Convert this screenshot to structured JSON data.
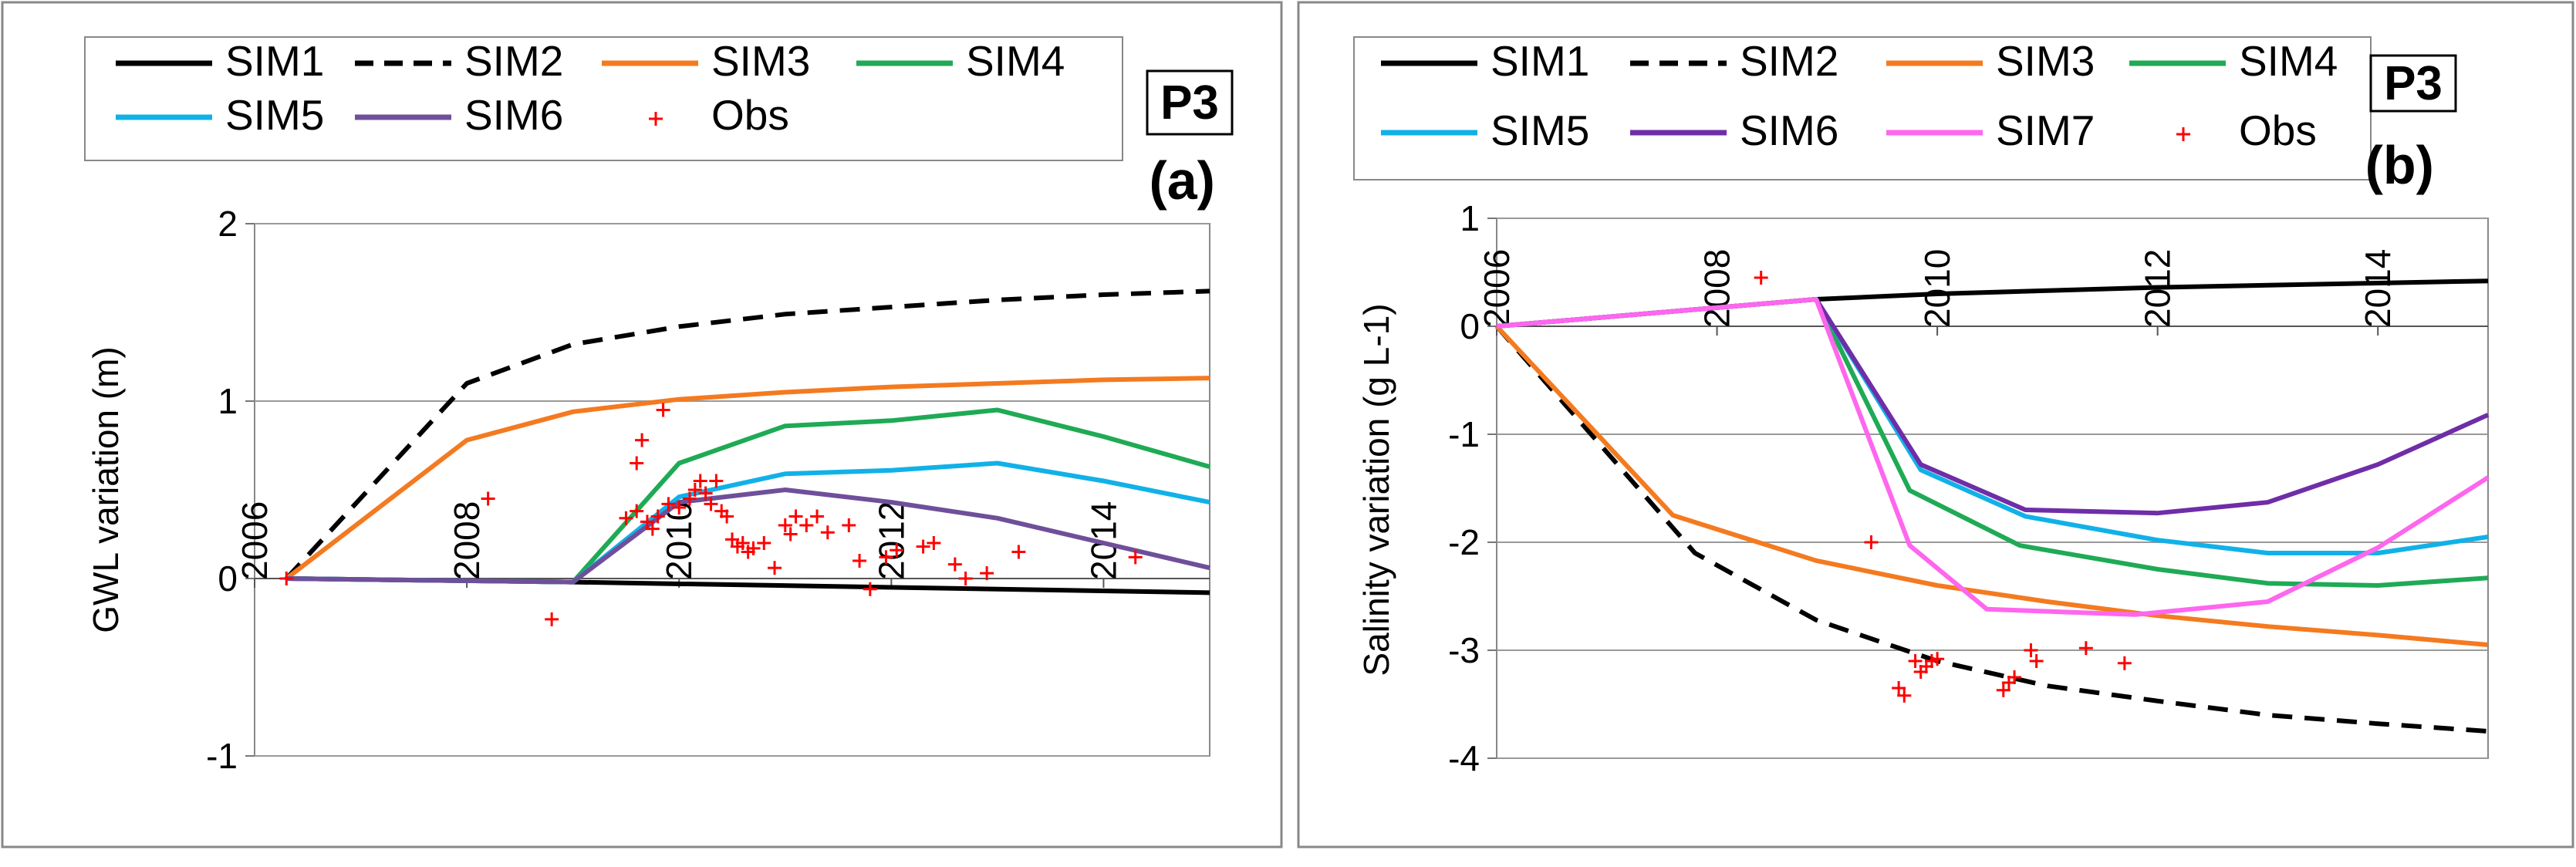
{
  "chart_data": [
    {
      "type": "line",
      "panel_label": "(a)",
      "site_label": "P3",
      "title": "",
      "xlabel": "",
      "ylabel": "GWL variation (m)",
      "xlim": [
        2006,
        2015
      ],
      "ylim": [
        -1,
        2
      ],
      "x_ticks": [
        2006,
        2008,
        2010,
        2012,
        2014
      ],
      "x_tick_labels": [
        "2006",
        "2008",
        "2010",
        "2012",
        "2014"
      ],
      "y_ticks": [
        2,
        1,
        0,
        -1
      ],
      "y_tick_labels": [
        "2",
        "1",
        "0",
        "-1"
      ],
      "grid": "horizontal",
      "legend": [
        "SIM1",
        "SIM2",
        "SIM3",
        "SIM4",
        "SIM5",
        "SIM6",
        "Obs"
      ],
      "series": [
        {
          "name": "SIM1",
          "color": "#000000",
          "dash": "solid",
          "points": [
            [
              2006.3,
              0
            ],
            [
              2009,
              -0.02
            ],
            [
              2015,
              -0.08
            ]
          ]
        },
        {
          "name": "SIM2",
          "color": "#000000",
          "dash": "dashed",
          "points": [
            [
              2006.3,
              0
            ],
            [
              2008,
              1.1
            ],
            [
              2009,
              1.32
            ],
            [
              2010,
              1.42
            ],
            [
              2011,
              1.49
            ],
            [
              2012,
              1.53
            ],
            [
              2013,
              1.57
            ],
            [
              2014,
              1.6
            ],
            [
              2015,
              1.62
            ]
          ]
        },
        {
          "name": "SIM3",
          "color": "#f47a20",
          "dash": "solid",
          "points": [
            [
              2006.3,
              0
            ],
            [
              2008,
              0.78
            ],
            [
              2009,
              0.94
            ],
            [
              2010,
              1.01
            ],
            [
              2011,
              1.05
            ],
            [
              2012,
              1.08
            ],
            [
              2013,
              1.1
            ],
            [
              2014,
              1.12
            ],
            [
              2015,
              1.13
            ]
          ]
        },
        {
          "name": "SIM4",
          "color": "#1faa55",
          "dash": "solid",
          "points": [
            [
              2006.3,
              0
            ],
            [
              2009,
              -0.02
            ],
            [
              2010,
              0.65
            ],
            [
              2011,
              0.86
            ],
            [
              2012,
              0.89
            ],
            [
              2013,
              0.95
            ],
            [
              2014,
              0.8
            ],
            [
              2015,
              0.63
            ]
          ]
        },
        {
          "name": "SIM5",
          "color": "#11b1e8",
          "dash": "solid",
          "points": [
            [
              2006.3,
              0
            ],
            [
              2009,
              -0.02
            ],
            [
              2010,
              0.46
            ],
            [
              2011,
              0.59
            ],
            [
              2012,
              0.61
            ],
            [
              2013,
              0.65
            ],
            [
              2014,
              0.55
            ],
            [
              2015,
              0.43
            ]
          ]
        },
        {
          "name": "SIM6",
          "color": "#6f4f9a",
          "dash": "solid",
          "points": [
            [
              2006.3,
              0
            ],
            [
              2009,
              -0.02
            ],
            [
              2010,
              0.43
            ],
            [
              2011,
              0.5
            ],
            [
              2012,
              0.43
            ],
            [
              2013,
              0.34
            ],
            [
              2014,
              0.2
            ],
            [
              2015,
              0.06
            ]
          ]
        }
      ],
      "observations": {
        "name": "Obs",
        "color": "#ff0000",
        "points": [
          [
            2006.3,
            0
          ],
          [
            2008.2,
            0.45
          ],
          [
            2008.8,
            -0.23
          ],
          [
            2009.5,
            0.34
          ],
          [
            2009.6,
            0.65
          ],
          [
            2009.6,
            0.38
          ],
          [
            2009.65,
            0.78
          ],
          [
            2009.7,
            0.32
          ],
          [
            2009.75,
            0.28
          ],
          [
            2009.8,
            0.35
          ],
          [
            2009.85,
            0.95
          ],
          [
            2009.9,
            0.42
          ],
          [
            2010.0,
            0.4
          ],
          [
            2010.1,
            0.45
          ],
          [
            2010.15,
            0.5
          ],
          [
            2010.2,
            0.55
          ],
          [
            2010.25,
            0.48
          ],
          [
            2010.3,
            0.42
          ],
          [
            2010.35,
            0.55
          ],
          [
            2010.4,
            0.38
          ],
          [
            2010.45,
            0.35
          ],
          [
            2010.5,
            0.22
          ],
          [
            2010.55,
            0.18
          ],
          [
            2010.6,
            0.2
          ],
          [
            2010.65,
            0.15
          ],
          [
            2010.7,
            0.17
          ],
          [
            2010.8,
            0.2
          ],
          [
            2010.9,
            0.06
          ],
          [
            2011.0,
            0.3
          ],
          [
            2011.05,
            0.25
          ],
          [
            2011.1,
            0.35
          ],
          [
            2011.2,
            0.3
          ],
          [
            2011.3,
            0.35
          ],
          [
            2011.4,
            0.26
          ],
          [
            2011.6,
            0.3
          ],
          [
            2011.7,
            0.1
          ],
          [
            2011.8,
            -0.06
          ],
          [
            2011.95,
            0.12
          ],
          [
            2012.05,
            0.16
          ],
          [
            2012.3,
            0.18
          ],
          [
            2012.4,
            0.2
          ],
          [
            2012.6,
            0.08
          ],
          [
            2012.7,
            0.0
          ],
          [
            2012.9,
            0.03
          ],
          [
            2013.2,
            0.15
          ],
          [
            2014.3,
            0.12
          ]
        ]
      }
    },
    {
      "type": "line",
      "panel_label": "(b)",
      "site_label": "P3",
      "title": "",
      "xlabel": "",
      "ylabel": "Salinity variation (g L-1)",
      "xlim": [
        2006,
        2015
      ],
      "ylim": [
        -4,
        1
      ],
      "x_ticks": [
        2006,
        2008,
        2010,
        2012,
        2014
      ],
      "x_tick_labels": [
        "2006",
        "2008",
        "2010",
        "2012",
        "2014"
      ],
      "y_ticks": [
        1,
        0,
        -1,
        -2,
        -3,
        -4
      ],
      "y_tick_labels": [
        "1",
        "0",
        "-1",
        "-2",
        "-3",
        "-4"
      ],
      "grid": "horizontal",
      "legend": [
        "SIM1",
        "SIM2",
        "SIM3",
        "SIM4",
        "SIM5",
        "SIM6",
        "SIM7",
        "Obs"
      ],
      "series": [
        {
          "name": "SIM1",
          "color": "#000000",
          "dash": "solid",
          "points": [
            [
              2006,
              0
            ],
            [
              2008.9,
              0.25
            ],
            [
              2010,
              0.3
            ],
            [
              2011,
              0.33
            ],
            [
              2012,
              0.36
            ],
            [
              2013,
              0.38
            ],
            [
              2014,
              0.4
            ],
            [
              2015,
              0.42
            ]
          ]
        },
        {
          "name": "SIM2",
          "color": "#000000",
          "dash": "dashed",
          "points": [
            [
              2006,
              0
            ],
            [
              2007.8,
              -2.1
            ],
            [
              2008.9,
              -2.72
            ],
            [
              2010,
              -3.1
            ],
            [
              2011,
              -3.33
            ],
            [
              2012,
              -3.47
            ],
            [
              2013,
              -3.6
            ],
            [
              2014,
              -3.68
            ],
            [
              2015,
              -3.75
            ]
          ]
        },
        {
          "name": "SIM3",
          "color": "#f47a20",
          "dash": "solid",
          "points": [
            [
              2006,
              0
            ],
            [
              2007.6,
              -1.75
            ],
            [
              2008.9,
              -2.17
            ],
            [
              2010,
              -2.4
            ],
            [
              2011,
              -2.55
            ],
            [
              2012,
              -2.68
            ],
            [
              2013,
              -2.78
            ],
            [
              2014,
              -2.86
            ],
            [
              2015,
              -2.95
            ]
          ]
        },
        {
          "name": "SIM4",
          "color": "#1faa55",
          "dash": "solid",
          "points": [
            [
              2006,
              0
            ],
            [
              2008.9,
              0.25
            ],
            [
              2009.75,
              -1.52
            ],
            [
              2010.75,
              -2.03
            ],
            [
              2012,
              -2.25
            ],
            [
              2013,
              -2.38
            ],
            [
              2014,
              -2.4
            ],
            [
              2015,
              -2.33
            ]
          ]
        },
        {
          "name": "SIM5",
          "color": "#11b1e8",
          "dash": "solid",
          "points": [
            [
              2006,
              0
            ],
            [
              2008.9,
              0.25
            ],
            [
              2009.85,
              -1.33
            ],
            [
              2010.8,
              -1.76
            ],
            [
              2012,
              -1.98
            ],
            [
              2013,
              -2.1
            ],
            [
              2014,
              -2.1
            ],
            [
              2015,
              -1.95
            ]
          ]
        },
        {
          "name": "SIM6",
          "color": "#6f2da8",
          "dash": "solid",
          "points": [
            [
              2006,
              0
            ],
            [
              2008.9,
              0.25
            ],
            [
              2009.85,
              -1.28
            ],
            [
              2010.8,
              -1.7
            ],
            [
              2012,
              -1.73
            ],
            [
              2013,
              -1.63
            ],
            [
              2014,
              -1.28
            ],
            [
              2015,
              -0.82
            ]
          ]
        },
        {
          "name": "SIM7",
          "color": "#ff66ee",
          "dash": "solid",
          "points": [
            [
              2006,
              0
            ],
            [
              2008.9,
              0.25
            ],
            [
              2009.75,
              -2.03
            ],
            [
              2010.45,
              -2.62
            ],
            [
              2011.8,
              -2.67
            ],
            [
              2013,
              -2.55
            ],
            [
              2014,
              -2.05
            ],
            [
              2015,
              -1.4
            ]
          ]
        }
      ],
      "observations": {
        "name": "Obs",
        "color": "#ff0000",
        "points": [
          [
            2008.4,
            0.45
          ],
          [
            2009.4,
            -2.0
          ],
          [
            2009.65,
            -3.35
          ],
          [
            2009.7,
            -3.42
          ],
          [
            2009.8,
            -3.1
          ],
          [
            2009.85,
            -3.2
          ],
          [
            2009.9,
            -3.15
          ],
          [
            2009.95,
            -3.1
          ],
          [
            2010.0,
            -3.08
          ],
          [
            2010.6,
            -3.37
          ],
          [
            2010.65,
            -3.3
          ],
          [
            2010.7,
            -3.25
          ],
          [
            2010.85,
            -3.0
          ],
          [
            2010.9,
            -3.1
          ],
          [
            2011.35,
            -2.98
          ],
          [
            2011.7,
            -3.12
          ]
        ]
      }
    }
  ]
}
